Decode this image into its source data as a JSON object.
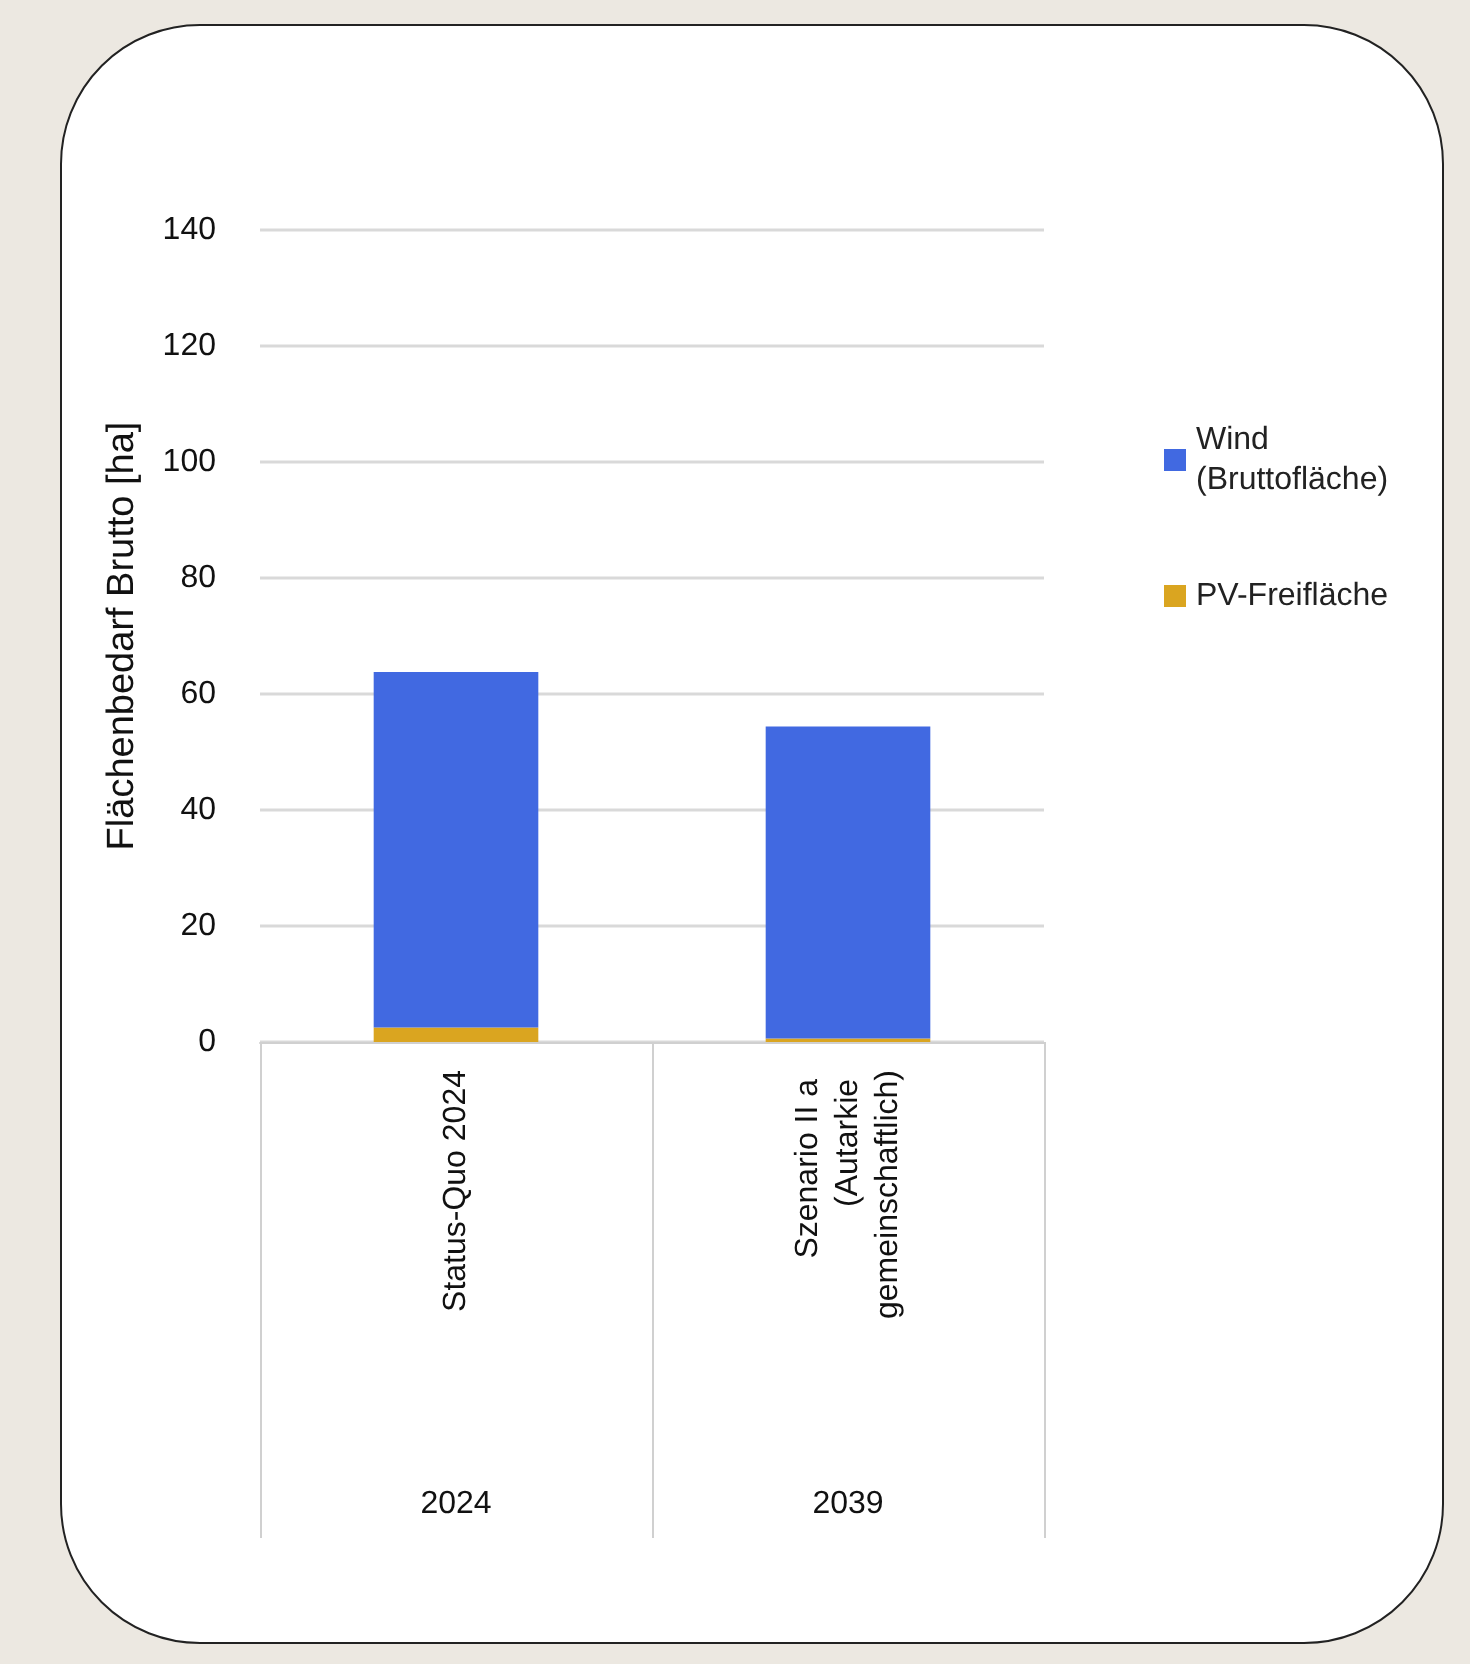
{
  "chart_data": {
    "type": "bar",
    "stacked": true,
    "ylabel": "Flächenbedarf Brutto [ha]",
    "categories": [
      "Status-Quo 2024",
      "Szenario II a (Autarkie gemeinschaftlich)"
    ],
    "series": [
      {
        "name": "PV-Freifläche",
        "color": "#daa520",
        "values": [
          2.5,
          0.6
        ]
      },
      {
        "name": "Wind (Bruttofläche)",
        "color": "#4169e1",
        "values": [
          61.3,
          53.8
        ]
      }
    ],
    "annotations": [
      "2024",
      "2039"
    ],
    "ylim": [
      0,
      140
    ],
    "yticks": [
      0,
      20,
      40,
      60,
      80,
      100,
      120,
      140
    ],
    "grid": "y",
    "legend": "right"
  }
}
